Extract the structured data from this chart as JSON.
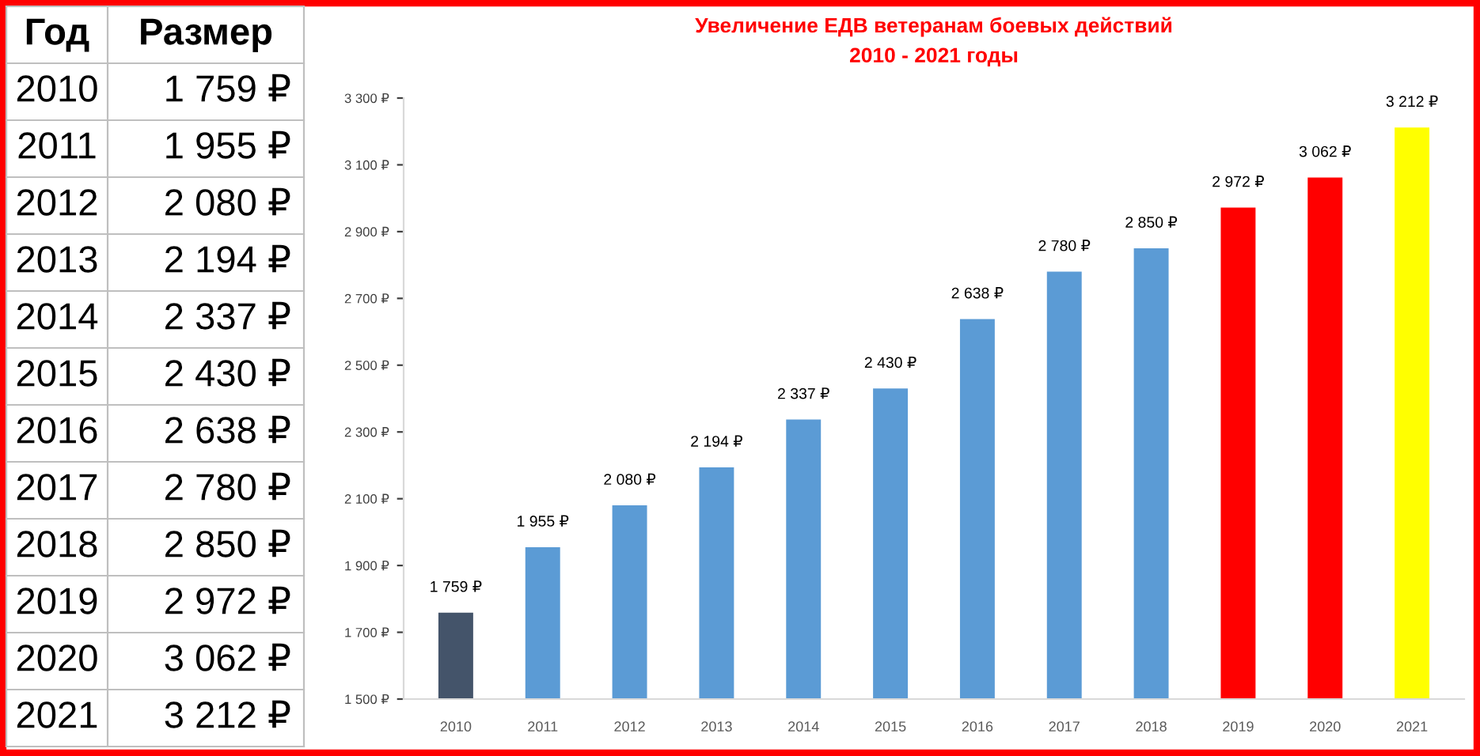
{
  "chart_data": {
    "type": "bar",
    "title": "Увеличение ЕДВ ветеранам боевых действий",
    "subtitle": "2010 - 2021 годы",
    "categories": [
      "2010",
      "2011",
      "2012",
      "2013",
      "2014",
      "2015",
      "2016",
      "2017",
      "2018",
      "2019",
      "2020",
      "2021"
    ],
    "values": [
      1759,
      1955,
      2080,
      2194,
      2337,
      2430,
      2638,
      2780,
      2850,
      2972,
      3062,
      3212
    ],
    "colors": [
      "#44546a",
      "#5b9bd5",
      "#5b9bd5",
      "#5b9bd5",
      "#5b9bd5",
      "#5b9bd5",
      "#5b9bd5",
      "#5b9bd5",
      "#5b9bd5",
      "#ff0000",
      "#ff0000",
      "#ffff00"
    ],
    "value_labels": [
      "1 759 ₽",
      "1 955 ₽",
      "2 080 ₽",
      "2 194 ₽",
      "2 337 ₽",
      "2 430 ₽",
      "2 638 ₽",
      "2 780 ₽",
      "2 850 ₽",
      "2 972 ₽",
      "3 062 ₽",
      "3 212 ₽"
    ],
    "ylim": [
      1500,
      3300
    ],
    "yticks": [
      {
        "value": 1500,
        "label": "1 500 ₽"
      },
      {
        "value": 1700,
        "label": "1 700 ₽"
      },
      {
        "value": 1900,
        "label": "1 900 ₽"
      },
      {
        "value": 2100,
        "label": "2 100 ₽"
      },
      {
        "value": 2300,
        "label": "2 300 ₽"
      },
      {
        "value": 2500,
        "label": "2 500 ₽"
      },
      {
        "value": 2700,
        "label": "2 700 ₽"
      },
      {
        "value": 2900,
        "label": "2 900 ₽"
      },
      {
        "value": 3100,
        "label": "3 100 ₽"
      },
      {
        "value": 3300,
        "label": "3 300 ₽"
      }
    ],
    "annotations": [
      "Год",
      "Размер"
    ],
    "grid": false,
    "legend": false
  }
}
